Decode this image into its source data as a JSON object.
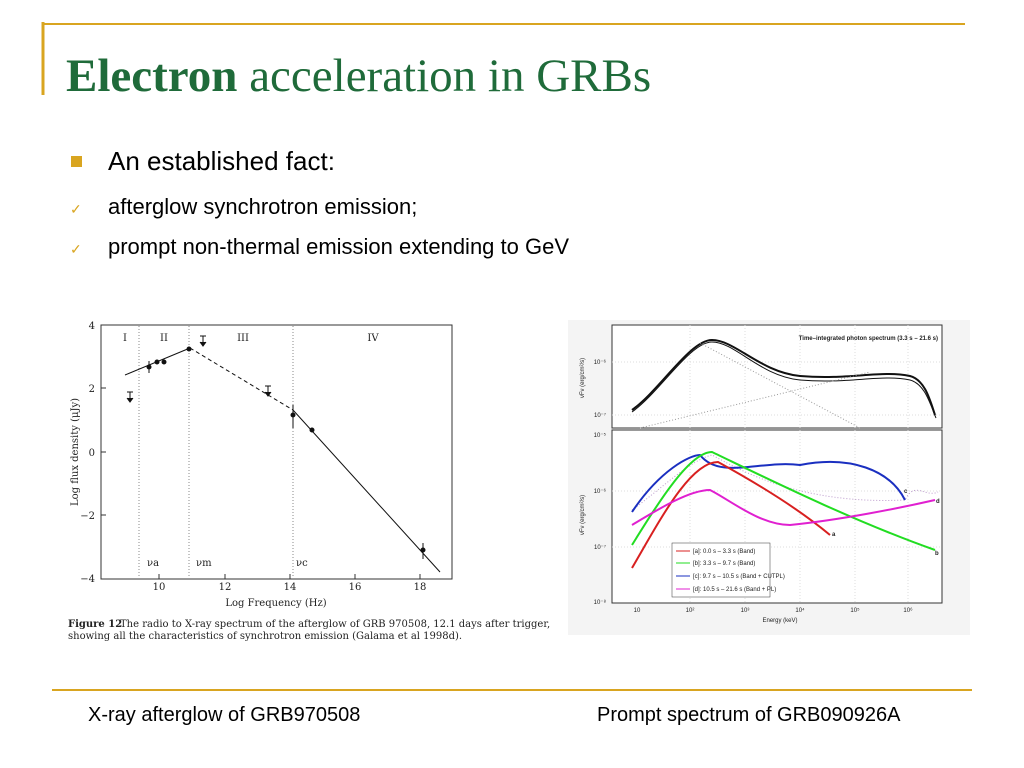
{
  "slide": {
    "title_bold": "Electron",
    "title_rest": "acceleration in GRBs",
    "bullet": "An established fact:",
    "sub_bullets": [
      "afterglow synchrotron emission;",
      "prompt non-thermal emission extending to GeV"
    ],
    "captions": [
      "X-ray afterglow of GRB970508",
      "Prompt spectrum of GRB090926A"
    ]
  },
  "figure_left": {
    "y_axis_label": "Log flux density (μJy)",
    "x_axis_label": "Log Frequency (Hz)",
    "y_ticks": [
      "4",
      "2",
      "0",
      "−2",
      "−4"
    ],
    "x_ticks": [
      "10",
      "12",
      "14",
      "16",
      "18"
    ],
    "regions": [
      "I",
      "II",
      "III",
      "IV"
    ],
    "breaks": [
      "νa",
      "νm",
      "νc"
    ],
    "caption_label": "Figure 12",
    "caption_lines": [
      "The radio to X-ray spectrum of the afterglow of GRB 970508, 12.1 days after trigger,",
      "showing all the characteristics of synchrotron emission (Galama et al 1998d)."
    ]
  },
  "figure_right": {
    "title": "Time–integrated photon spectrum (3.3 s – 21.6 s)",
    "y_axis_label": "νFν (erg/cm²/s)",
    "x_axis_label": "Energy (keV)",
    "x_ticks": [
      "10",
      "10²",
      "10³",
      "10⁴",
      "10⁵",
      "10⁶"
    ],
    "top_y_ticks": [
      "10⁻⁶",
      "10⁻⁷"
    ],
    "bottom_y_ticks": [
      "10⁻⁵",
      "10⁻⁶",
      "10⁻⁷",
      "10⁻⁸"
    ],
    "legend": [
      "[a]: 0.0 s – 3.3 s (Band)",
      "[b]: 3.3 s – 9.7 s (Band)",
      "[c]: 9.7 s – 10.5 s (Band + CUTPL)",
      "[d]: 10.5 s – 21.6 s (Band + PL)"
    ],
    "curve_labels": [
      "a",
      "b",
      "c",
      "d"
    ]
  }
}
